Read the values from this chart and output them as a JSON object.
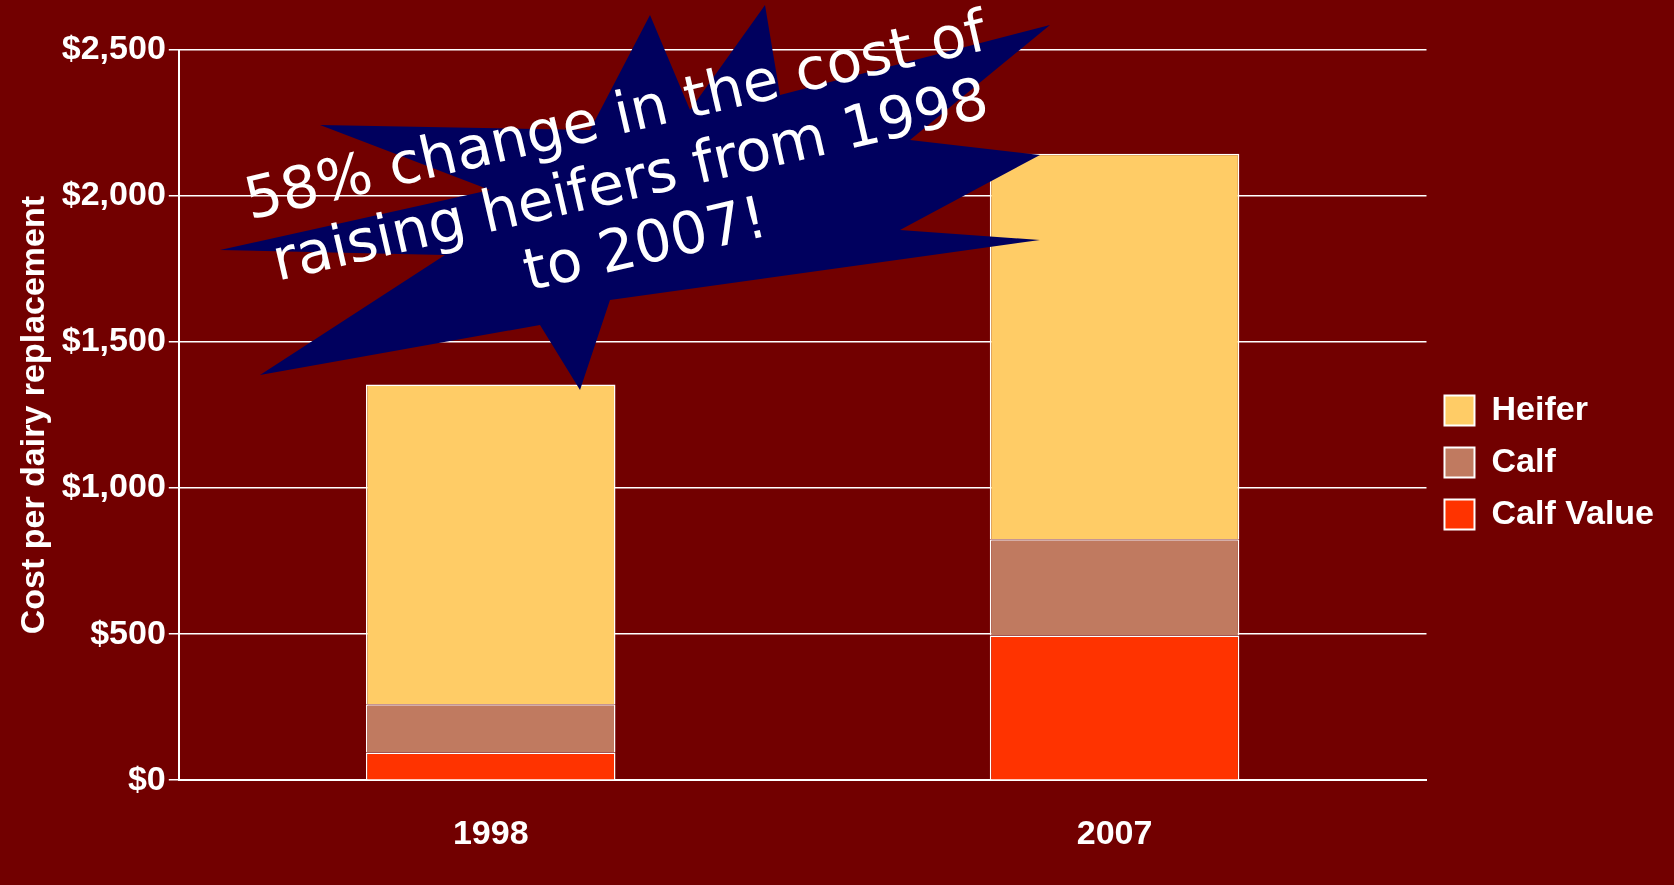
{
  "chart_data": {
    "type": "bar",
    "stacked": true,
    "ylabel": "Cost per dairy replacement",
    "categories": [
      "1998",
      "2007"
    ],
    "series": [
      {
        "name": "Calf Value",
        "color": "#ff3300",
        "values": [
          95,
          495
        ]
      },
      {
        "name": "Calf",
        "color": "#c07a60",
        "values": [
          165,
          330
        ]
      },
      {
        "name": "Heifer",
        "color": "#ffcc66",
        "values": [
          1095,
          1320
        ]
      }
    ],
    "ylim": [
      0,
      2500
    ],
    "yticks": [
      {
        "value": 0,
        "label": "$0"
      },
      {
        "value": 500,
        "label": "$500"
      },
      {
        "value": 1000,
        "label": "$1,000"
      },
      {
        "value": 1500,
        "label": "$1,500"
      },
      {
        "value": 2000,
        "label": "$2,000"
      },
      {
        "value": 2500,
        "label": "$2,500"
      }
    ],
    "grid": "y",
    "legend": "right",
    "annotations": [
      "58% change in the cost of raising heifers from 1998 to 2007!"
    ]
  }
}
